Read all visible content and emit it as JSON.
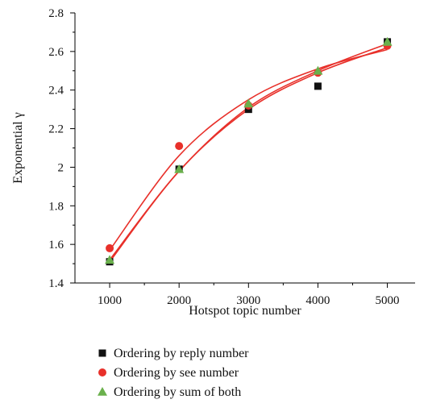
{
  "chart_data": {
    "type": "scatter",
    "title": "",
    "xlabel": "Hotspot topic number",
    "ylabel": "Exponential γ",
    "xlim": [
      500,
      5400
    ],
    "ylim": [
      1.4,
      2.8
    ],
    "x_ticks": [
      1000,
      2000,
      3000,
      4000,
      5000
    ],
    "y_ticks": [
      1.4,
      1.6,
      1.8,
      2,
      2.2,
      2.4,
      2.6,
      2.8
    ],
    "x_tick_labels": [
      "1000",
      "2000",
      "3000",
      "4000",
      "5000"
    ],
    "y_tick_labels": [
      "1.4",
      "1.6",
      "1.8",
      "2",
      "2.2",
      "2.4",
      "2.6",
      "2.8"
    ],
    "grid": false,
    "legend_position": "bottom",
    "x": [
      1000,
      2000,
      3000,
      4000,
      5000
    ],
    "series": [
      {
        "name": "Ordering by reply number",
        "marker": "square",
        "color": "#111111",
        "values": [
          1.51,
          1.99,
          2.3,
          2.42,
          2.65
        ],
        "fit": [
          1.51,
          1.98,
          2.3,
          2.49,
          2.62
        ]
      },
      {
        "name": "Ordering by see number",
        "marker": "circle",
        "color": "#e8302a",
        "values": [
          1.58,
          2.11,
          2.32,
          2.49,
          2.63
        ],
        "fit": [
          1.57,
          2.06,
          2.35,
          2.51,
          2.61
        ]
      },
      {
        "name": "Ordering by sum of both",
        "marker": "triangle",
        "color": "#6ab04c",
        "values": [
          1.52,
          1.99,
          2.33,
          2.5,
          2.65
        ],
        "fit": [
          1.52,
          1.98,
          2.31,
          2.5,
          2.64
        ]
      }
    ],
    "fit_line_color": "#e8302a"
  }
}
